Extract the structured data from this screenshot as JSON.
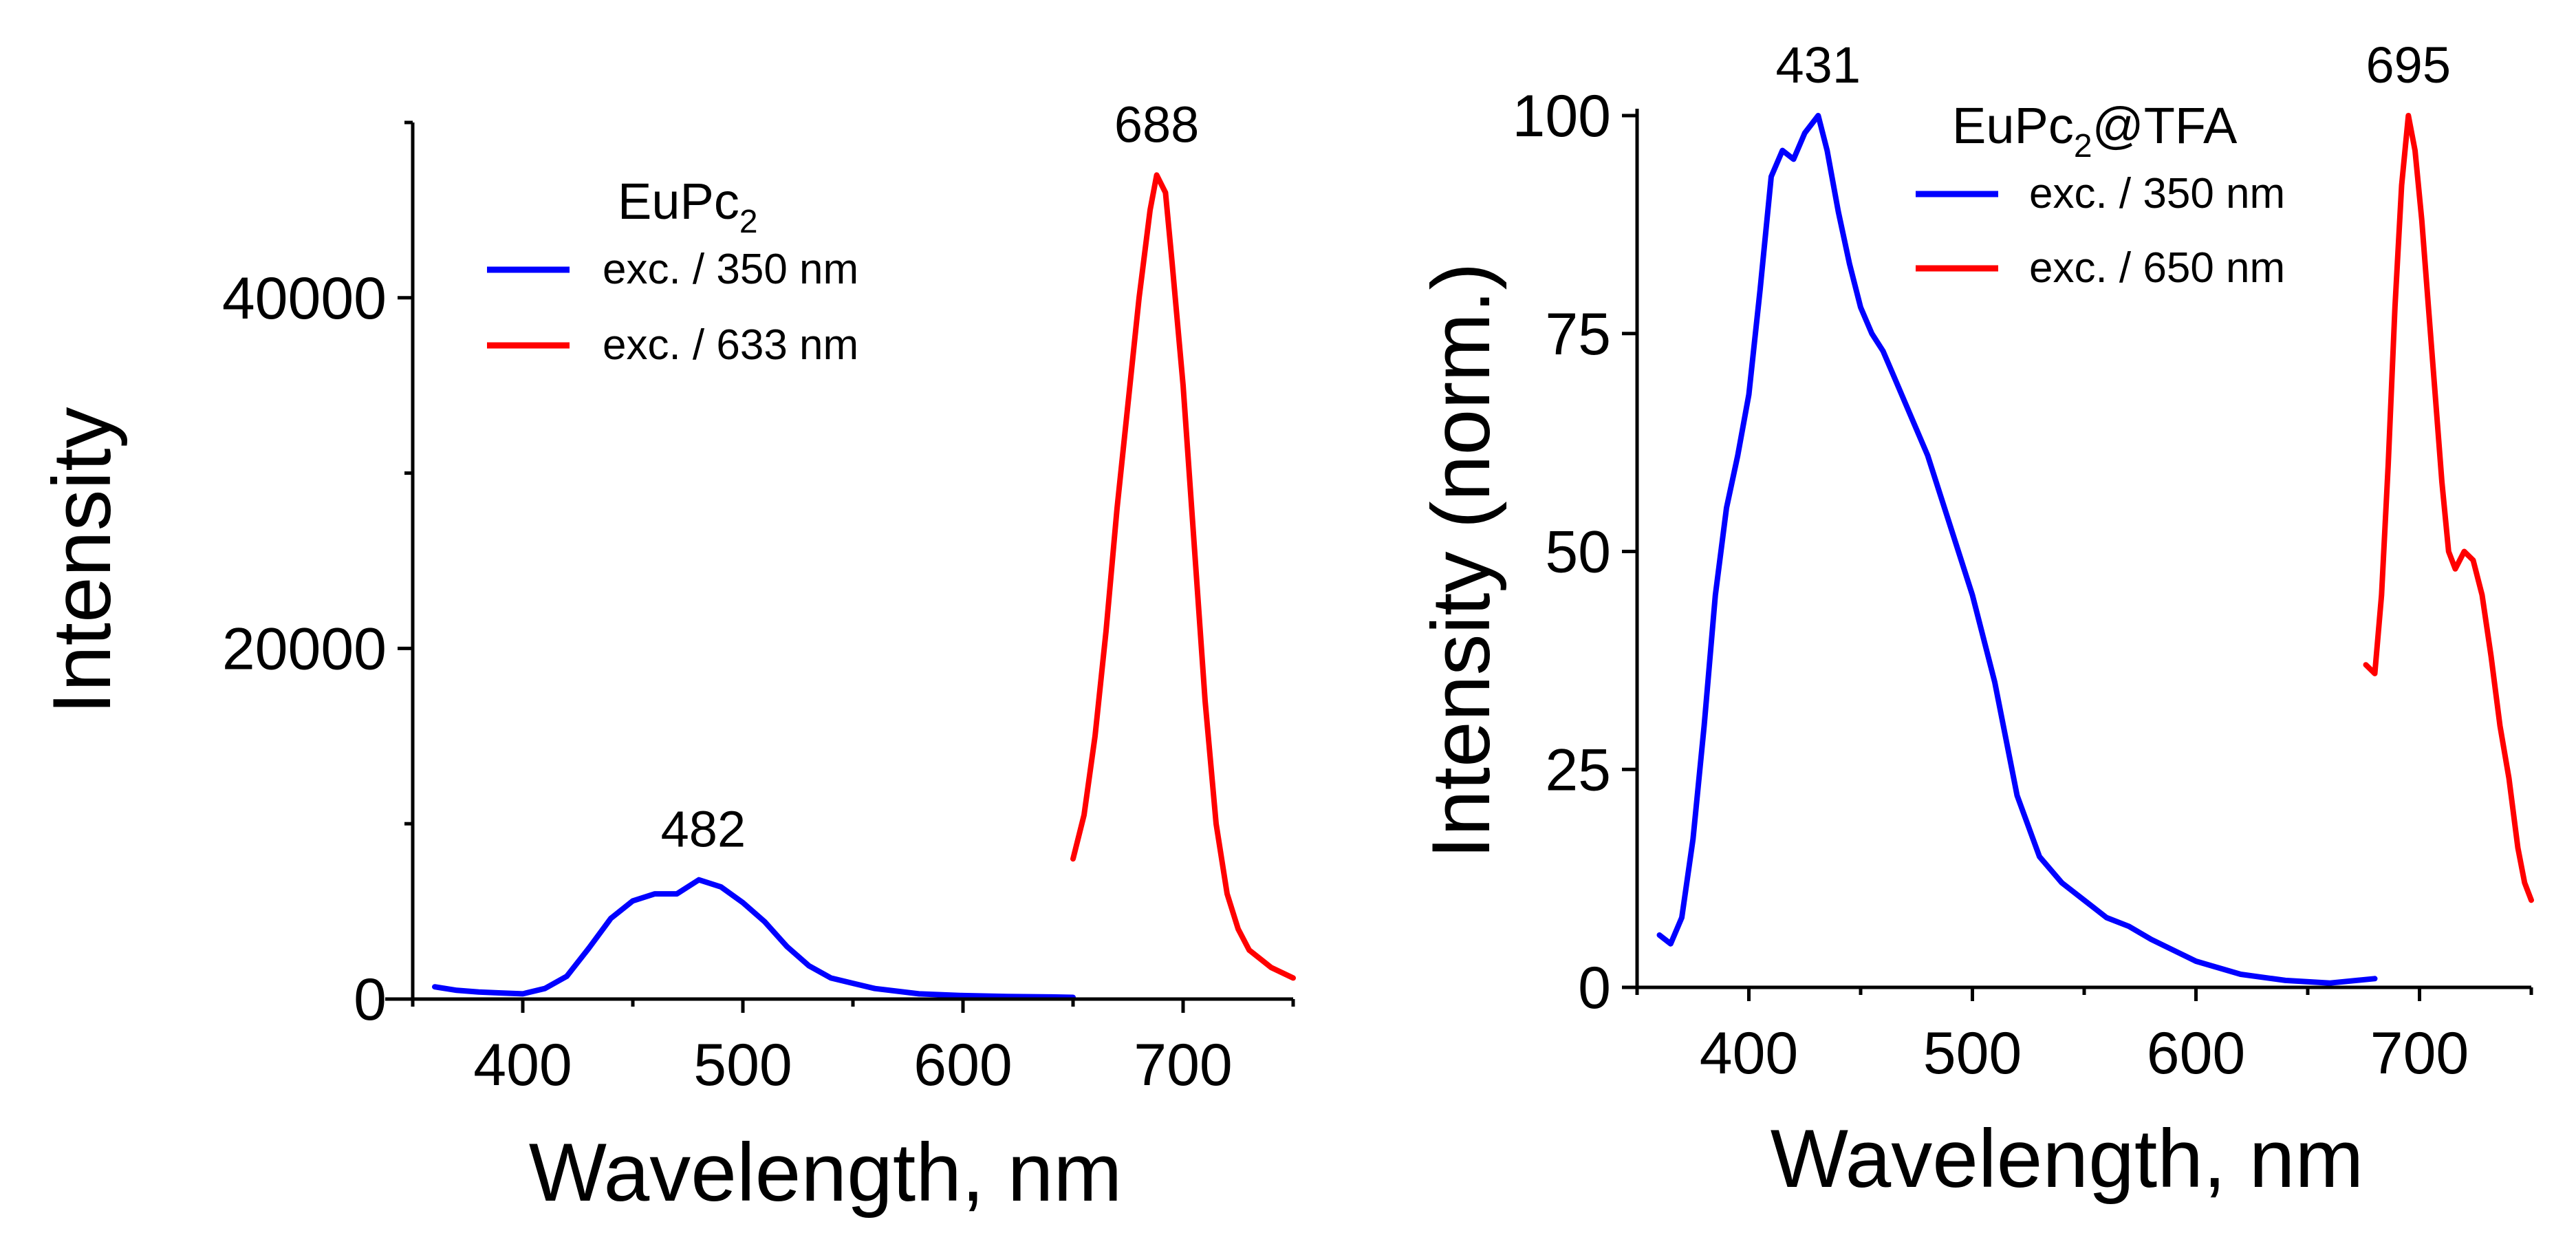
{
  "chart_data": [
    {
      "type": "line",
      "xlabel": "Wavelength, nm",
      "ylabel": "Intensity",
      "xlim": [
        350,
        750
      ],
      "ylim": [
        0,
        50000
      ],
      "xticks": [
        "400",
        "500",
        "600",
        "700"
      ],
      "yticks": [
        "0",
        "20000",
        "40000"
      ],
      "legend": {
        "title": "EuPc",
        "title_sub": "2",
        "position": "top-center"
      },
      "series": [
        {
          "name": "exc. / 350 nm",
          "color": "#0000ff",
          "x": [
            360,
            370,
            380,
            390,
            400,
            410,
            420,
            430,
            440,
            450,
            460,
            470,
            480,
            490,
            500,
            510,
            520,
            530,
            540,
            550,
            560,
            580,
            600,
            620,
            640,
            650
          ],
          "y": [
            700,
            500,
            400,
            350,
            300,
            600,
            1300,
            2900,
            4600,
            5600,
            6000,
            6000,
            6800,
            6400,
            5500,
            4400,
            3000,
            1900,
            1200,
            900,
            600,
            300,
            200,
            150,
            120,
            100
          ]
        },
        {
          "name": "exc. / 633 nm",
          "color": "#ff0000",
          "x": [
            650,
            655,
            660,
            665,
            670,
            675,
            680,
            685,
            688,
            692,
            695,
            700,
            705,
            710,
            715,
            720,
            725,
            730,
            740,
            750
          ],
          "y": [
            8000,
            10500,
            15000,
            21000,
            28000,
            34000,
            40000,
            45000,
            47000,
            46000,
            42000,
            35000,
            26000,
            17000,
            10000,
            6000,
            4000,
            2800,
            1800,
            1200
          ]
        }
      ],
      "annotations": [
        {
          "text": "482",
          "x": 482,
          "y": 6800
        },
        {
          "text": "688",
          "x": 688,
          "y": 47000
        }
      ]
    },
    {
      "type": "line",
      "xlabel": "Wavelength, nm",
      "ylabel": "Intensity (norm.)",
      "xlim": [
        350,
        750
      ],
      "ylim": [
        0,
        100
      ],
      "xticks": [
        "400",
        "500",
        "600",
        "700"
      ],
      "yticks": [
        "0",
        "25",
        "50",
        "75",
        "100"
      ],
      "legend": {
        "title": "EuPc",
        "title_sub": "2",
        "title_suffix": "@TFA",
        "position": "top-center"
      },
      "series": [
        {
          "name": "exc. / 350 nm",
          "color": "#0000ff",
          "x": [
            360,
            365,
            370,
            375,
            380,
            385,
            390,
            395,
            400,
            405,
            410,
            415,
            420,
            425,
            431,
            435,
            440,
            445,
            450,
            455,
            460,
            465,
            470,
            480,
            490,
            500,
            510,
            520,
            530,
            540,
            550,
            560,
            570,
            580,
            600,
            620,
            640,
            660,
            680
          ],
          "y": [
            6,
            5,
            8,
            17,
            30,
            45,
            55,
            61,
            68,
            80,
            93,
            96,
            95,
            98,
            100,
            96,
            89,
            83,
            78,
            75,
            73,
            70,
            67,
            61,
            53,
            45,
            35,
            22,
            15,
            12,
            10,
            8,
            7,
            5.5,
            3,
            1.5,
            0.8,
            0.5,
            1
          ]
        },
        {
          "name": "exc. / 650 nm",
          "color": "#ff0000",
          "x": [
            676,
            680,
            683,
            686,
            689,
            692,
            695,
            698,
            701,
            704,
            707,
            710,
            713,
            716,
            720,
            724,
            728,
            732,
            736,
            740,
            744,
            747,
            750
          ],
          "y": [
            37,
            36,
            45,
            60,
            78,
            92,
            100,
            96,
            88,
            78,
            68,
            58,
            50,
            48,
            50,
            49,
            45,
            38,
            30,
            24,
            16,
            12,
            10
          ]
        }
      ],
      "annotations": [
        {
          "text": "431",
          "x": 431,
          "y": 100
        },
        {
          "text": "695",
          "x": 695,
          "y": 100
        }
      ]
    }
  ]
}
